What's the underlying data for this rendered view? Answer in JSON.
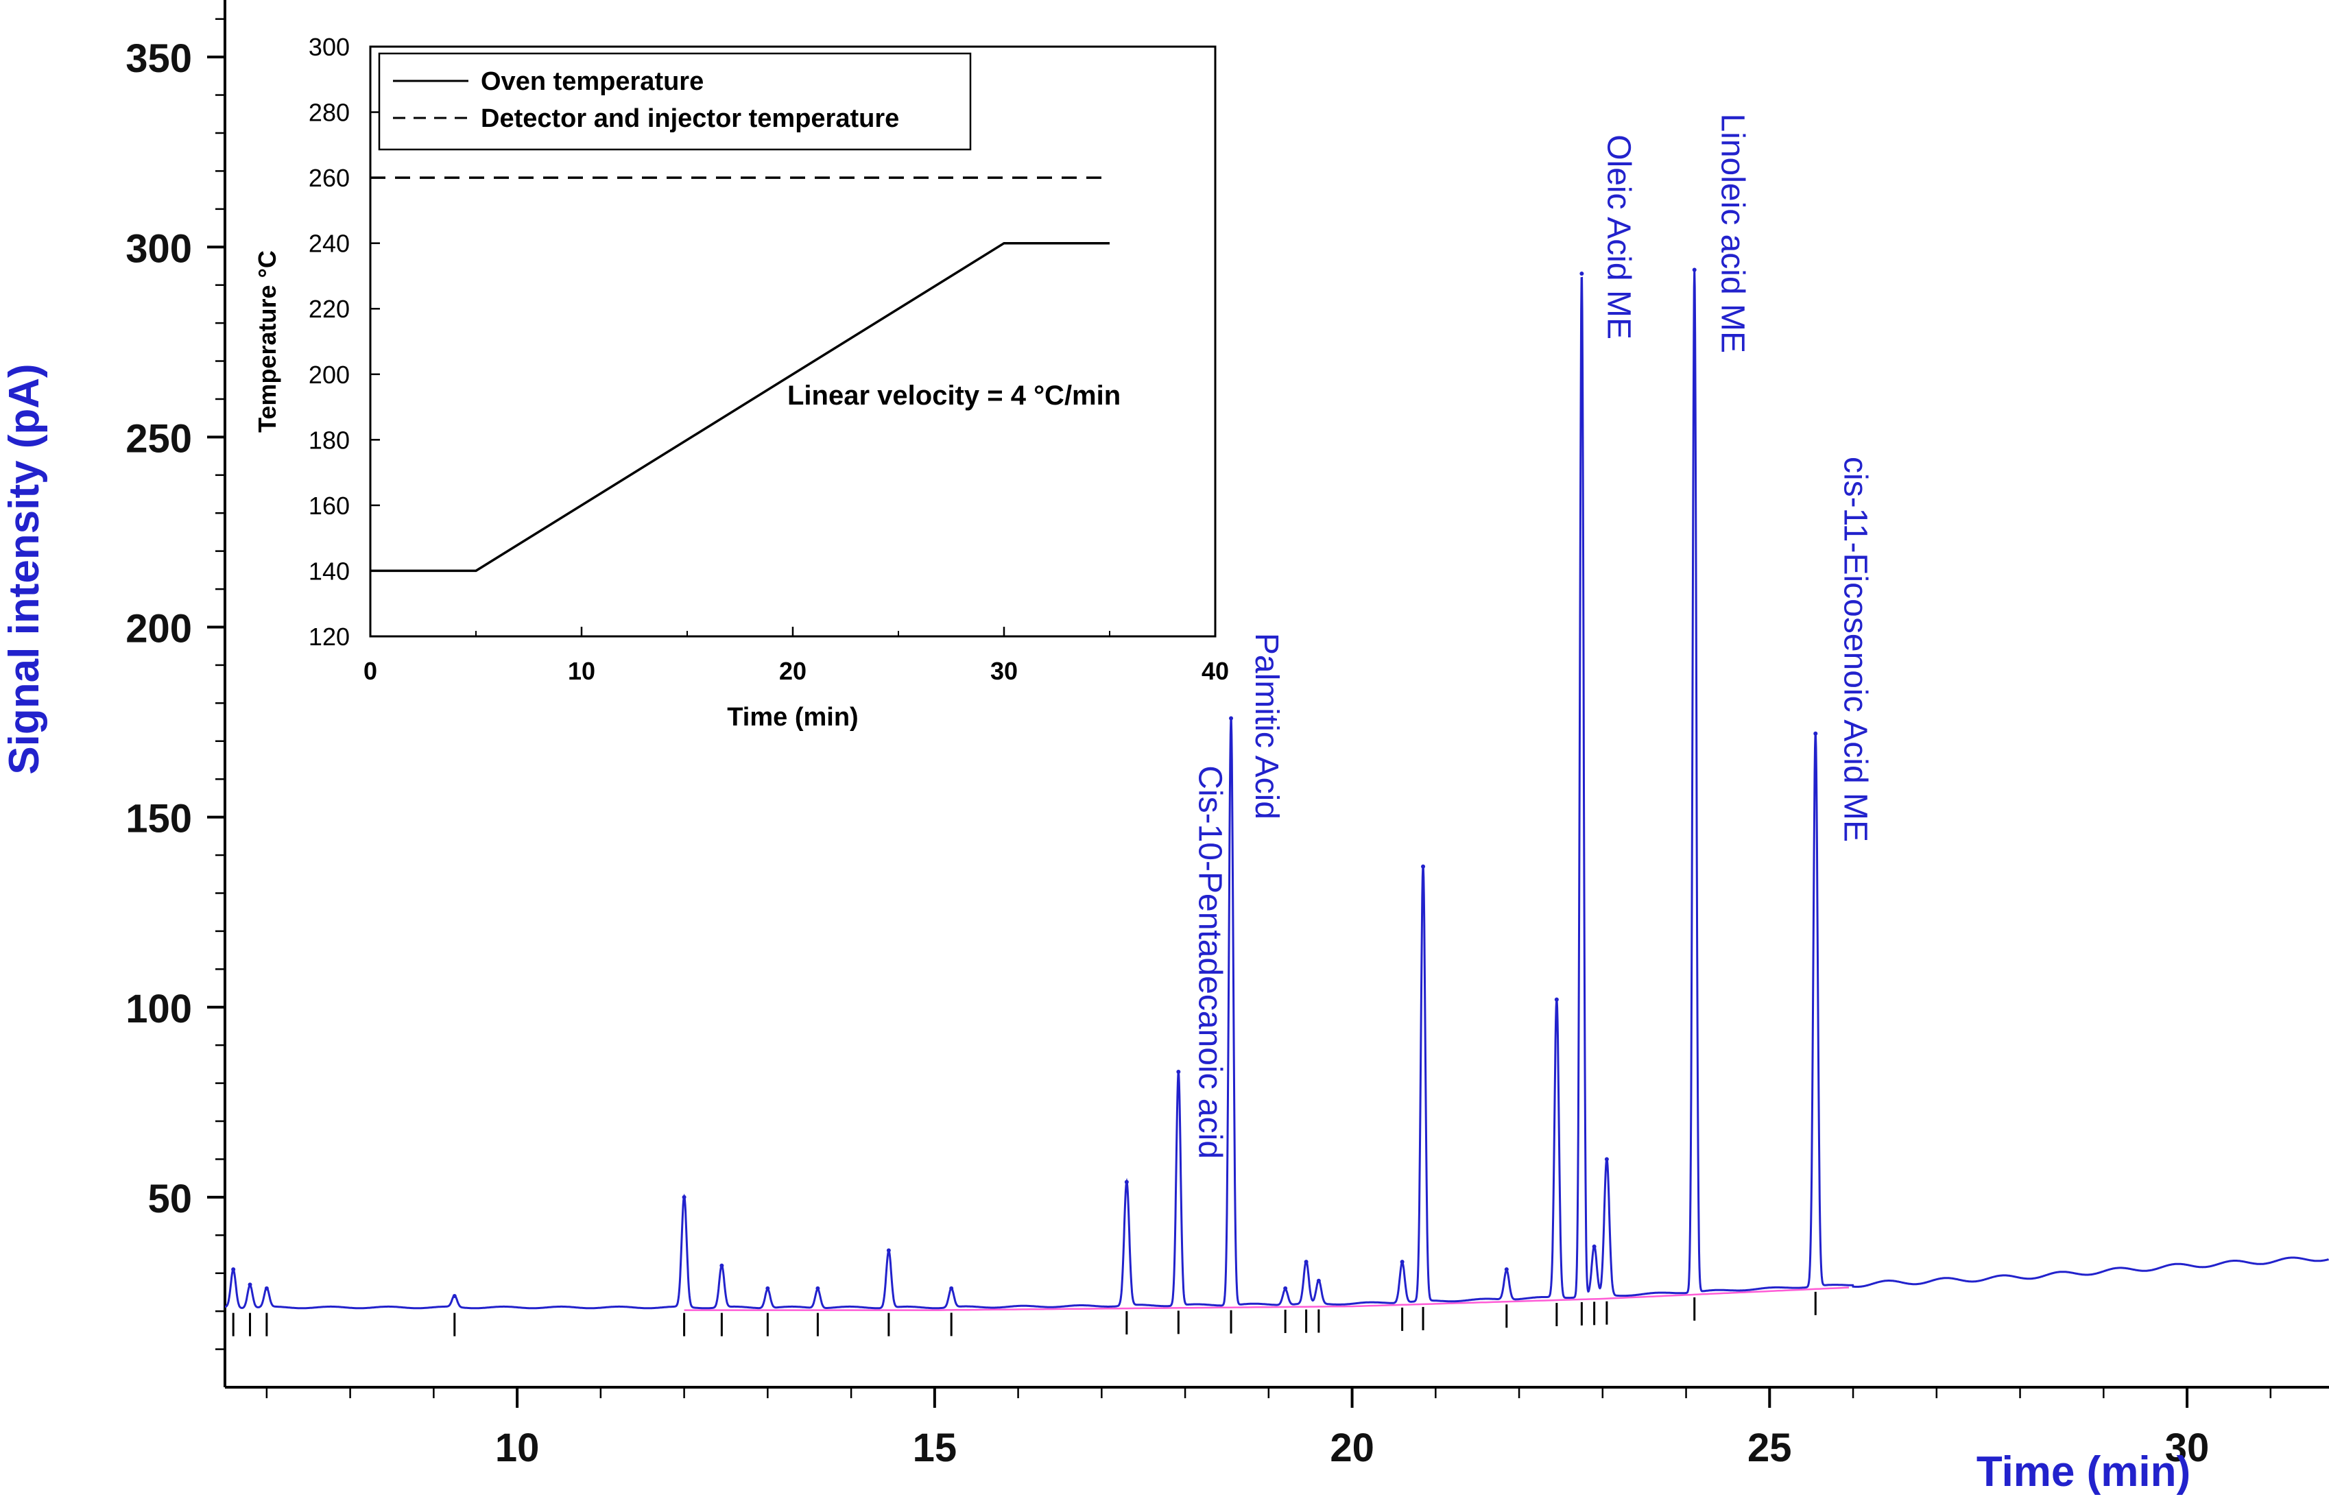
{
  "chart_data": [
    {
      "type": "line",
      "id": "chromatogram",
      "title": "",
      "xlabel": "Time (min)",
      "ylabel": "Signal intensity (pA)",
      "xlim": [
        6.5,
        31.7
      ],
      "ylim": [
        0,
        365
      ],
      "x_ticks": [
        10,
        15,
        20,
        25,
        30
      ],
      "y_ticks": [
        50,
        100,
        150,
        200,
        250,
        300,
        350
      ],
      "baseline": {
        "x": [
          6.5,
          15,
          20,
          23,
          25,
          26.5,
          28,
          30,
          31.7
        ],
        "y": [
          21,
          21,
          22,
          24,
          26,
          27.5,
          29,
          32,
          34
        ]
      },
      "peaks": [
        {
          "x": 6.6,
          "y": 31
        },
        {
          "x": 6.8,
          "y": 27
        },
        {
          "x": 7.0,
          "y": 26
        },
        {
          "x": 9.25,
          "y": 24
        },
        {
          "x": 12.0,
          "y": 50
        },
        {
          "x": 12.45,
          "y": 32
        },
        {
          "x": 13.0,
          "y": 26
        },
        {
          "x": 13.6,
          "y": 26
        },
        {
          "x": 14.45,
          "y": 36
        },
        {
          "x": 15.2,
          "y": 26
        },
        {
          "x": 17.3,
          "y": 54
        },
        {
          "x": 17.92,
          "y": 83
        },
        {
          "x": 18.55,
          "y": 176
        },
        {
          "x": 19.2,
          "y": 26
        },
        {
          "x": 19.45,
          "y": 33
        },
        {
          "x": 19.6,
          "y": 28
        },
        {
          "x": 20.6,
          "y": 33
        },
        {
          "x": 20.85,
          "y": 137
        },
        {
          "x": 21.85,
          "y": 31
        },
        {
          "x": 22.45,
          "y": 102
        },
        {
          "x": 22.75,
          "y": 293
        },
        {
          "x": 22.9,
          "y": 37
        },
        {
          "x": 23.05,
          "y": 60
        },
        {
          "x": 24.1,
          "y": 294
        },
        {
          "x": 25.55,
          "y": 172
        }
      ],
      "peak_labels": [
        {
          "text": "Cis-10-Pentadecanoic acid",
          "x": 17.92
        },
        {
          "text": "Palmitic Acid",
          "x": 18.55
        },
        {
          "text": "Oleic Acid ME",
          "x": 22.75
        },
        {
          "text": "Linoleic acid ME",
          "x": 24.1
        },
        {
          "text": "cis-11-Eicosenoic Acid ME",
          "x": 25.55
        }
      ],
      "colors": {
        "signal": "#2222cc",
        "label": "#2222cc",
        "baseline_mark": "#ff33cc",
        "axes": "#000000"
      }
    },
    {
      "type": "line",
      "id": "inset",
      "title": "",
      "xlabel": "Time (min)",
      "ylabel": "Temperature °C",
      "xlim": [
        0,
        40
      ],
      "ylim": [
        120,
        300
      ],
      "x_ticks": [
        0,
        10,
        20,
        30,
        40
      ],
      "y_ticks": [
        120,
        140,
        160,
        180,
        200,
        220,
        240,
        260,
        280,
        300
      ],
      "series": [
        {
          "name": "Oven temperature",
          "style": "solid",
          "x": [
            0,
            5,
            30,
            35
          ],
          "y": [
            140,
            140,
            240,
            240
          ]
        },
        {
          "name": "Detector and injector temperature",
          "style": "dashed",
          "x": [
            0,
            35
          ],
          "y": [
            260,
            260
          ]
        }
      ],
      "annotation": "Linear velocity = 4 °C/min",
      "legend_position": "top-left"
    }
  ]
}
